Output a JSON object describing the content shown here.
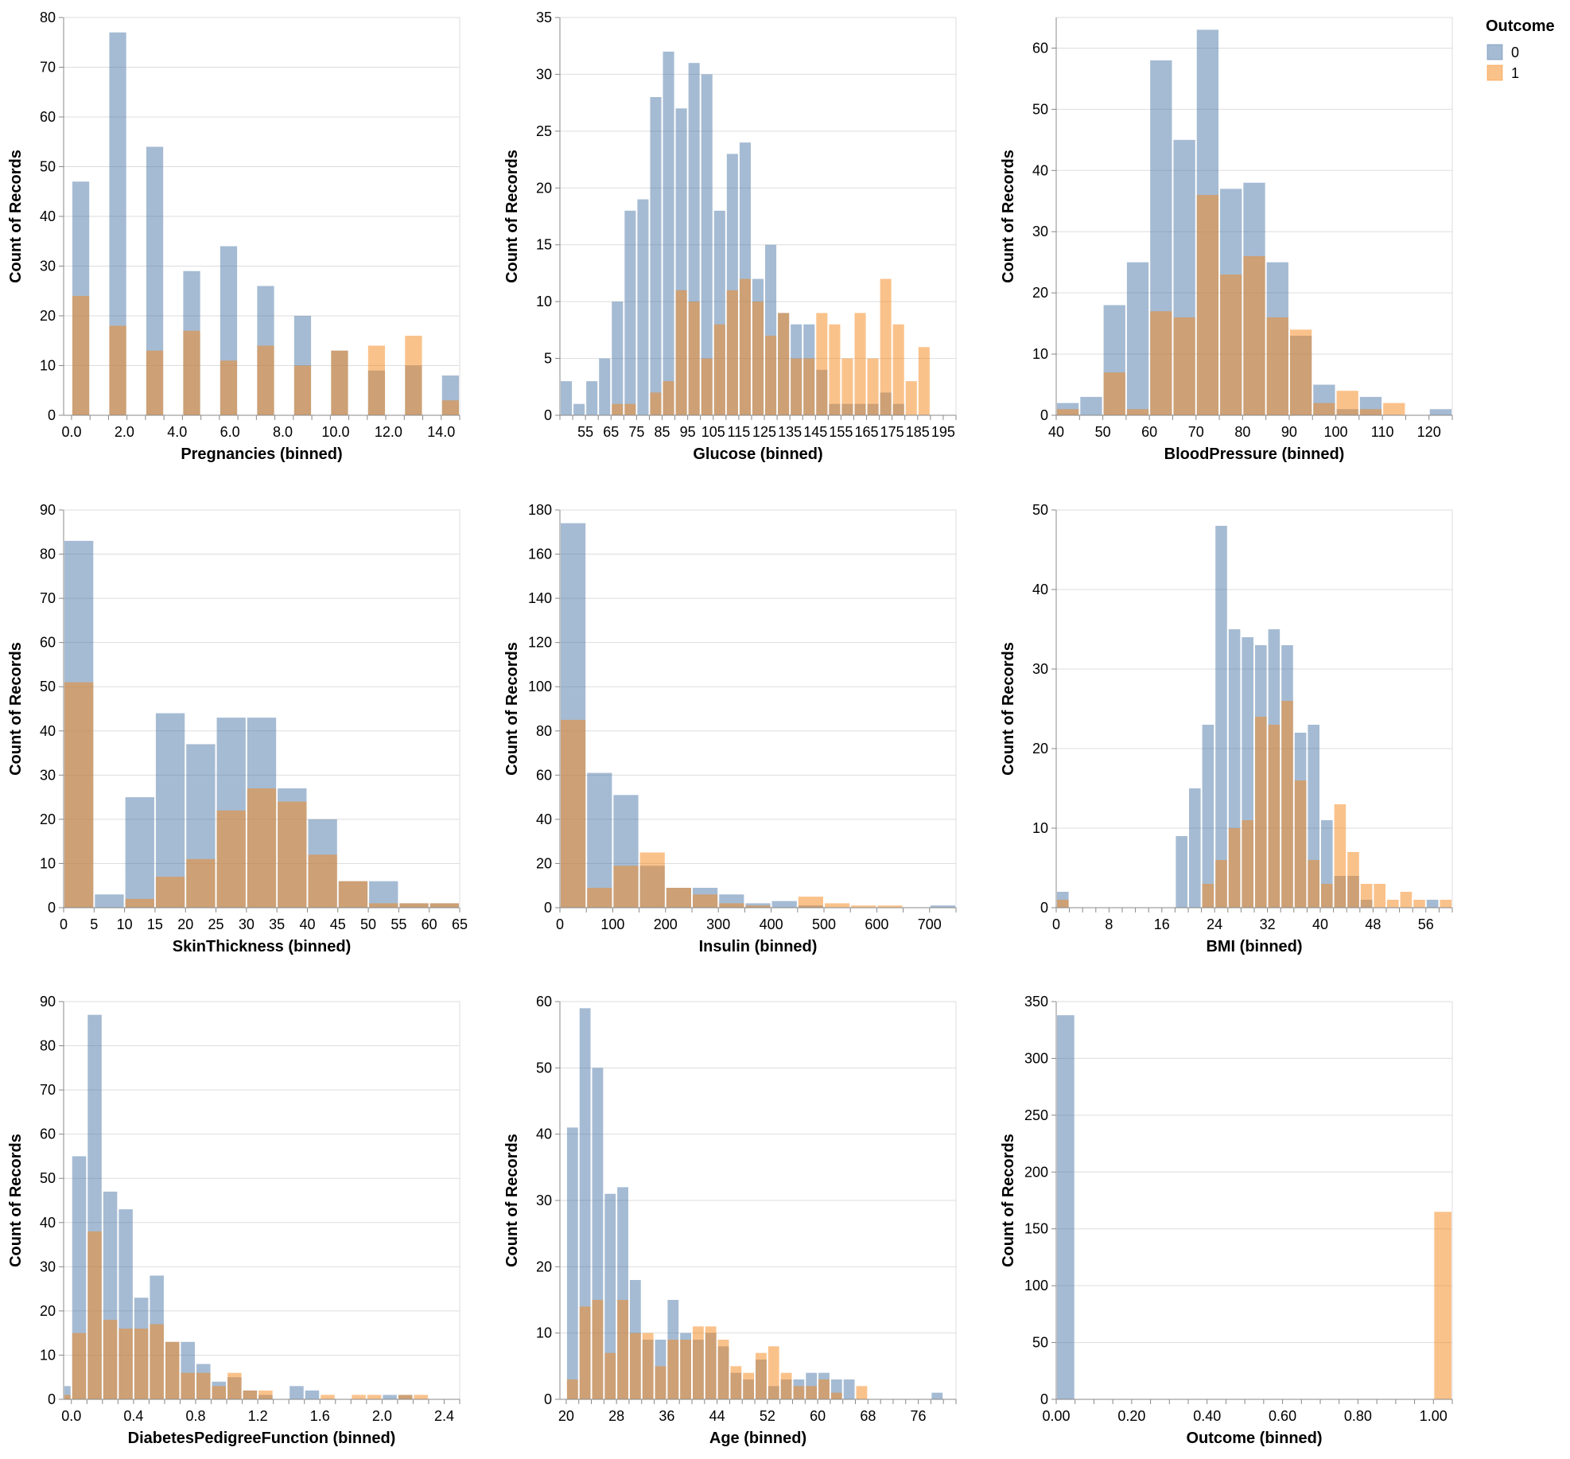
{
  "legend": {
    "title": "Outcome",
    "items": [
      {
        "label": "0",
        "color": "#4c78a8"
      },
      {
        "label": "1",
        "color": "#f58518"
      }
    ]
  },
  "chart_data": [
    {
      "type": "bar",
      "stacked": false,
      "opacity": 0.5,
      "xlabel": "Pregnancies (binned)",
      "ylabel": "Count of Records",
      "bin_start": 0,
      "bin_step": 0.7,
      "xlim": [
        -0.3,
        14.7
      ],
      "ylim": [
        0,
        80
      ],
      "x_ticks": [
        "0.0",
        "2.0",
        "4.0",
        "6.0",
        "8.0",
        "10.0",
        "12.0",
        "14.0"
      ],
      "y_ticks": [
        0,
        10,
        20,
        30,
        40,
        50,
        60,
        70,
        80
      ],
      "series": [
        {
          "name": "0",
          "values": [
            47,
            0,
            77,
            0,
            54,
            0,
            29,
            0,
            34,
            0,
            26,
            0,
            20,
            0,
            13,
            0,
            9,
            0,
            10,
            0,
            8,
            0,
            3,
            0,
            4,
            0,
            0,
            0
          ]
        },
        {
          "name": "1",
          "values": [
            24,
            0,
            18,
            0,
            13,
            0,
            17,
            0,
            11,
            0,
            14,
            0,
            10,
            0,
            13,
            0,
            14,
            0,
            16,
            0,
            3,
            0,
            4,
            0,
            2,
            0,
            4,
            2
          ]
        }
      ]
    },
    {
      "type": "bar",
      "stacked": false,
      "opacity": 0.5,
      "xlabel": "Glucose (binned)",
      "ylabel": "Count of Records",
      "bin_start": 45,
      "bin_step": 5,
      "xlim": [
        45,
        200
      ],
      "ylim": [
        0,
        35
      ],
      "x_ticks": [
        "55",
        "65",
        "75",
        "85",
        "95",
        "105",
        "115",
        "125",
        "135",
        "145",
        "155",
        "165",
        "175",
        "185",
        "195"
      ],
      "y_ticks": [
        0,
        5,
        10,
        15,
        20,
        25,
        30,
        35
      ],
      "series": [
        {
          "name": "0",
          "values": [
            3,
            1,
            3,
            5,
            10,
            18,
            19,
            28,
            32,
            27,
            31,
            30,
            18,
            23,
            24,
            12,
            15,
            9,
            8,
            8,
            4,
            1,
            1,
            1,
            1,
            2,
            1
          ]
        },
        {
          "name": "1",
          "values": [
            0,
            0,
            0,
            0,
            1,
            1,
            0,
            2,
            3,
            11,
            10,
            5,
            8,
            11,
            12,
            10,
            7,
            9,
            5,
            5,
            9,
            8,
            5,
            9,
            5,
            12,
            8,
            3,
            6
          ]
        }
      ]
    },
    {
      "type": "bar",
      "stacked": false,
      "opacity": 0.5,
      "xlabel": "BloodPressure (binned)",
      "ylabel": "Count of Records",
      "bin_start": 40,
      "bin_step": 5,
      "xlim": [
        40,
        125
      ],
      "ylim": [
        0,
        65
      ],
      "x_ticks": [
        "40",
        "50",
        "60",
        "70",
        "80",
        "90",
        "100",
        "110",
        "120"
      ],
      "y_ticks": [
        0,
        10,
        20,
        30,
        40,
        50,
        60
      ],
      "series": [
        {
          "name": "0",
          "values": [
            2,
            3,
            18,
            25,
            58,
            45,
            63,
            37,
            38,
            25,
            13,
            5,
            1,
            3,
            0,
            0,
            1
          ]
        },
        {
          "name": "1",
          "values": [
            1,
            0,
            7,
            1,
            17,
            16,
            36,
            23,
            26,
            16,
            14,
            2,
            4,
            1,
            2,
            0,
            0
          ]
        }
      ]
    },
    {
      "type": "bar",
      "stacked": false,
      "opacity": 0.5,
      "xlabel": "SkinThickness (binned)",
      "ylabel": "Count of Records",
      "bin_start": 0,
      "bin_step": 5,
      "xlim": [
        0,
        65
      ],
      "ylim": [
        0,
        90
      ],
      "x_ticks": [
        "0",
        "5",
        "10",
        "15",
        "20",
        "25",
        "30",
        "35",
        "40",
        "45",
        "50",
        "55",
        "60",
        "65"
      ],
      "y_ticks": [
        0,
        10,
        20,
        30,
        40,
        50,
        60,
        70,
        80,
        90
      ],
      "series": [
        {
          "name": "0",
          "values": [
            83,
            3,
            25,
            44,
            37,
            43,
            43,
            27,
            20,
            6,
            6,
            1,
            1
          ]
        },
        {
          "name": "1",
          "values": [
            51,
            0,
            2,
            7,
            11,
            22,
            27,
            24,
            12,
            6,
            1,
            1,
            1
          ]
        }
      ]
    },
    {
      "type": "bar",
      "stacked": false,
      "opacity": 0.5,
      "xlabel": "Insulin (binned)",
      "ylabel": "Count of Records",
      "bin_start": 0,
      "bin_step": 50,
      "xlim": [
        0,
        750
      ],
      "ylim": [
        0,
        180
      ],
      "x_ticks": [
        "0",
        "100",
        "200",
        "300",
        "400",
        "500",
        "600",
        "700"
      ],
      "y_ticks": [
        0,
        20,
        40,
        60,
        80,
        100,
        120,
        140,
        160,
        180
      ],
      "series": [
        {
          "name": "0",
          "values": [
            174,
            61,
            51,
            19,
            9,
            9,
            6,
            2,
            3,
            1,
            0,
            0,
            0,
            0,
            1
          ]
        },
        {
          "name": "1",
          "values": [
            85,
            9,
            19,
            25,
            9,
            6,
            2,
            1,
            0,
            5,
            2,
            1,
            1,
            0,
            0
          ]
        }
      ]
    },
    {
      "type": "bar",
      "stacked": false,
      "opacity": 0.5,
      "xlabel": "BMI (binned)",
      "ylabel": "Count of Records",
      "bin_start": 0,
      "bin_step": 2,
      "xlim": [
        0,
        60
      ],
      "ylim": [
        0,
        50
      ],
      "x_ticks": [
        "0",
        "8",
        "16",
        "24",
        "32",
        "40",
        "48",
        "56"
      ],
      "y_ticks": [
        0,
        10,
        20,
        30,
        40,
        50
      ],
      "series": [
        {
          "name": "0",
          "values": [
            2,
            0,
            0,
            0,
            0,
            0,
            0,
            0,
            0,
            9,
            15,
            23,
            48,
            35,
            34,
            33,
            35,
            33,
            22,
            23,
            11,
            4,
            4,
            1,
            0,
            0,
            0,
            0,
            1,
            0
          ]
        },
        {
          "name": "1",
          "values": [
            1,
            0,
            0,
            0,
            0,
            0,
            0,
            0,
            0,
            0,
            0,
            3,
            6,
            10,
            11,
            24,
            23,
            26,
            16,
            6,
            3,
            13,
            7,
            3,
            3,
            1,
            2,
            1,
            0,
            1
          ]
        }
      ]
    },
    {
      "type": "bar",
      "stacked": false,
      "opacity": 0.5,
      "xlabel": "DiabetesPedigreeFunction (binned)",
      "ylabel": "Count of Records",
      "bin_start": -0.1,
      "bin_step": 0.1,
      "xlim": [
        -0.05,
        2.5
      ],
      "ylim": [
        0,
        90
      ],
      "x_ticks": [
        "0.0",
        "0.4",
        "0.8",
        "1.2",
        "1.6",
        "2.0",
        "2.4"
      ],
      "y_ticks": [
        0,
        10,
        20,
        30,
        40,
        50,
        60,
        70,
        80,
        90
      ],
      "series": [
        {
          "name": "0",
          "values": [
            3,
            55,
            87,
            47,
            43,
            23,
            28,
            13,
            13,
            8,
            4,
            5,
            2,
            1,
            0,
            3,
            2,
            0,
            0,
            0,
            0,
            1,
            1,
            0
          ]
        },
        {
          "name": "1",
          "values": [
            1,
            15,
            38,
            18,
            16,
            16,
            17,
            13,
            6,
            6,
            3,
            6,
            2,
            2,
            0,
            0,
            0,
            1,
            0,
            1,
            1,
            0,
            1,
            1
          ]
        }
      ]
    },
    {
      "type": "bar",
      "stacked": false,
      "opacity": 0.5,
      "xlabel": "Age (binned)",
      "ylabel": "Count of Records",
      "bin_start": 20,
      "bin_step": 2,
      "xlim": [
        19,
        82
      ],
      "ylim": [
        0,
        60
      ],
      "x_ticks": [
        "20",
        "28",
        "36",
        "44",
        "52",
        "60",
        "68",
        "76"
      ],
      "y_ticks": [
        0,
        10,
        20,
        30,
        40,
        50,
        60
      ],
      "series": [
        {
          "name": "0",
          "values": [
            41,
            59,
            50,
            31,
            32,
            18,
            9,
            9,
            15,
            10,
            9,
            10,
            8,
            4,
            3,
            6,
            2,
            3,
            3,
            4,
            4,
            3,
            3,
            0,
            0,
            0,
            0,
            0,
            0,
            1
          ]
        },
        {
          "name": "1",
          "values": [
            3,
            14,
            15,
            7,
            15,
            10,
            10,
            5,
            9,
            9,
            11,
            11,
            9,
            5,
            4,
            7,
            8,
            4,
            2,
            2,
            3,
            1,
            0,
            2,
            0,
            0,
            0,
            0,
            0,
            0
          ]
        }
      ]
    },
    {
      "type": "bar",
      "stacked": false,
      "opacity": 0.5,
      "xlabel": "Outcome (binned)",
      "ylabel": "Count of Records",
      "bin_start": 0,
      "bin_step": 0.05,
      "xlim": [
        0,
        1.05
      ],
      "ylim": [
        0,
        350
      ],
      "x_ticks": [
        "0.00",
        "0.20",
        "0.40",
        "0.60",
        "0.80",
        "1.00"
      ],
      "y_ticks": [
        0,
        50,
        100,
        150,
        200,
        250,
        300,
        350
      ],
      "series": [
        {
          "name": "0",
          "bins": [
            [
              0,
              338
            ]
          ]
        },
        {
          "name": "1",
          "bins": [
            [
              1.0,
              165
            ]
          ]
        }
      ]
    }
  ]
}
